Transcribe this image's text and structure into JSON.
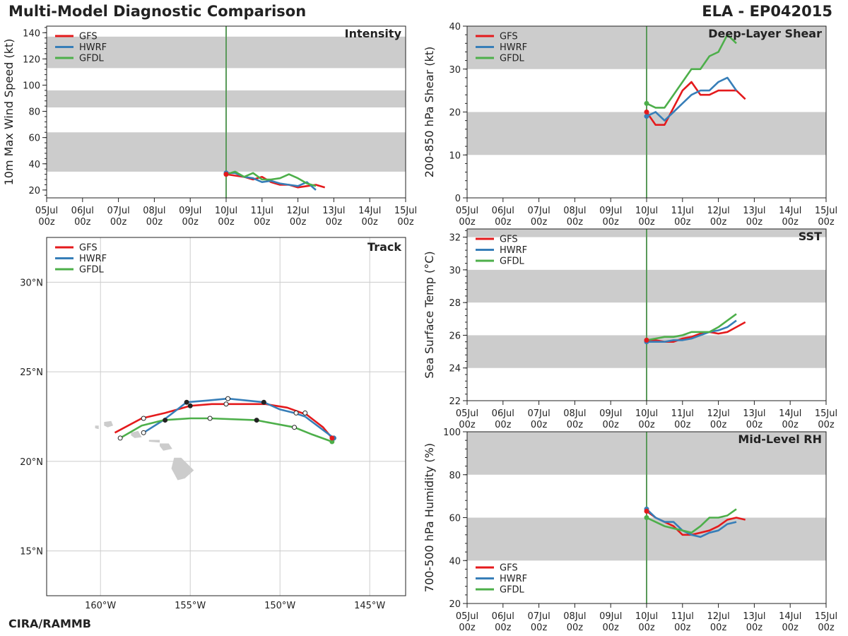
{
  "header": {
    "title": "Multi-Model Diagnostic Comparison",
    "storm": "ELA - EP042015"
  },
  "footer": {
    "credit": "CIRA/RAMMB"
  },
  "colors": {
    "GFS": "#e41a1c",
    "HWRF": "#377eb8",
    "GFDL": "#4daf4a",
    "band": "#cccccc",
    "init_line": "#5a9a5a",
    "land": "#cccccc"
  },
  "chart_data": [
    {
      "id": "intensity",
      "type": "line",
      "title": "Intensity",
      "ylabel": "10m Max Wind Speed (kt)",
      "ylim": [
        14,
        145
      ],
      "yticks": [
        20,
        40,
        60,
        80,
        100,
        120,
        140
      ],
      "xlim": [
        0,
        10
      ],
      "xticks": [
        "05Jul\n00z",
        "06Jul\n00z",
        "07Jul\n00z",
        "08Jul\n00z",
        "09Jul\n00z",
        "10Jul\n00z",
        "11Jul\n00z",
        "12Jul\n00z",
        "13Jul\n00z",
        "14Jul\n00z",
        "15Jul\n00z"
      ],
      "bands": [
        [
          34,
          64
        ],
        [
          83,
          96
        ],
        [
          113,
          137
        ]
      ],
      "init_x": 5,
      "legend": [
        "GFS",
        "HWRF",
        "GFDL"
      ],
      "series": [
        {
          "name": "GFS",
          "x": [
            5,
            5.25,
            5.5,
            5.75,
            6,
            6.25,
            6.5,
            6.75,
            7,
            7.25,
            7.5,
            7.75
          ],
          "y": [
            32,
            31,
            30,
            28,
            30,
            26,
            24,
            24,
            22,
            23,
            24,
            22
          ]
        },
        {
          "name": "HWRF",
          "x": [
            5,
            5.25,
            5.5,
            5.75,
            6,
            6.25,
            6.5,
            6.75,
            7,
            7.25,
            7.5
          ],
          "y": [
            33,
            33,
            30,
            29,
            26,
            27,
            25,
            24,
            23,
            26,
            20
          ]
        },
        {
          "name": "GFDL",
          "x": [
            5,
            5.25,
            5.5,
            5.75,
            6,
            6.25,
            6.5,
            6.75,
            7,
            7.25,
            7.5
          ],
          "y": [
            32,
            34,
            30,
            33,
            28,
            28,
            29,
            32,
            29,
            25,
            23
          ]
        }
      ]
    },
    {
      "id": "shear",
      "type": "line",
      "title": "Deep-Layer Shear",
      "ylabel": "200-850 hPa Shear (kt)",
      "ylim": [
        0,
        40
      ],
      "yticks": [
        0,
        10,
        20,
        30,
        40
      ],
      "xlim": [
        0,
        10
      ],
      "xticks": [
        "05Jul\n00z",
        "06Jul\n00z",
        "07Jul\n00z",
        "08Jul\n00z",
        "09Jul\n00z",
        "10Jul\n00z",
        "11Jul\n00z",
        "12Jul\n00z",
        "13Jul\n00z",
        "14Jul\n00z",
        "15Jul\n00z"
      ],
      "bands": [
        [
          10,
          20
        ],
        [
          30,
          40
        ]
      ],
      "init_x": 5,
      "legend": [
        "GFS",
        "HWRF",
        "GFDL"
      ],
      "series": [
        {
          "name": "GFS",
          "x": [
            5,
            5.25,
            5.5,
            5.75,
            6,
            6.25,
            6.5,
            6.75,
            7,
            7.25,
            7.5,
            7.75
          ],
          "y": [
            20,
            17,
            17,
            21,
            25,
            27,
            24,
            24,
            25,
            25,
            25,
            23
          ]
        },
        {
          "name": "HWRF",
          "x": [
            5,
            5.25,
            5.5,
            5.75,
            6,
            6.25,
            6.5,
            6.75,
            7,
            7.25,
            7.5
          ],
          "y": [
            19,
            20,
            18,
            20,
            22,
            24,
            25,
            25,
            27,
            28,
            25
          ]
        },
        {
          "name": "GFDL",
          "x": [
            5,
            5.25,
            5.5,
            5.75,
            6,
            6.25,
            6.5,
            6.75,
            7,
            7.25,
            7.5
          ],
          "y": [
            22,
            21,
            21,
            24,
            27,
            30,
            30,
            33,
            34,
            38,
            36
          ]
        }
      ]
    },
    {
      "id": "sst",
      "type": "line",
      "title": "SST",
      "ylabel": "Sea Surface Temp (°C)",
      "ylim": [
        22,
        32.5
      ],
      "yticks": [
        22,
        24,
        26,
        28,
        30,
        32
      ],
      "xlim": [
        0,
        10
      ],
      "xticks": [
        "05Jul\n00z",
        "06Jul\n00z",
        "07Jul\n00z",
        "08Jul\n00z",
        "09Jul\n00z",
        "10Jul\n00z",
        "11Jul\n00z",
        "12Jul\n00z",
        "13Jul\n00z",
        "14Jul\n00z",
        "15Jul\n00z"
      ],
      "bands": [
        [
          24,
          26
        ],
        [
          28,
          30
        ],
        [
          32,
          32.5
        ]
      ],
      "init_x": 5,
      "legend": [
        "GFS",
        "HWRF",
        "GFDL"
      ],
      "series": [
        {
          "name": "GFS",
          "x": [
            5,
            5.25,
            5.5,
            5.75,
            6,
            6.25,
            6.5,
            6.75,
            7,
            7.25,
            7.5,
            7.75
          ],
          "y": [
            25.7,
            25.7,
            25.6,
            25.6,
            25.8,
            25.9,
            26.1,
            26.2,
            26.1,
            26.2,
            26.5,
            26.8
          ]
        },
        {
          "name": "HWRF",
          "x": [
            5,
            5.25,
            5.5,
            5.75,
            6,
            6.25,
            6.5,
            6.75,
            7,
            7.25,
            7.5
          ],
          "y": [
            25.6,
            25.6,
            25.6,
            25.7,
            25.7,
            25.8,
            26,
            26.2,
            26.3,
            26.5,
            26.9
          ]
        },
        {
          "name": "GFDL",
          "x": [
            5,
            5.25,
            5.5,
            5.75,
            6,
            6.25,
            6.5,
            6.75,
            7,
            7.25,
            7.5
          ],
          "y": [
            25.7,
            25.8,
            25.9,
            25.9,
            26,
            26.2,
            26.2,
            26.2,
            26.5,
            26.9,
            27.3
          ]
        }
      ]
    },
    {
      "id": "rh",
      "type": "line",
      "title": "Mid-Level RH",
      "ylabel": "700-500 hPa Humidity (%)",
      "ylim": [
        20,
        100
      ],
      "yticks": [
        20,
        40,
        60,
        80,
        100
      ],
      "xlim": [
        0,
        10
      ],
      "xticks": [
        "05Jul\n00z",
        "06Jul\n00z",
        "07Jul\n00z",
        "08Jul\n00z",
        "09Jul\n00z",
        "10Jul\n00z",
        "11Jul\n00z",
        "12Jul\n00z",
        "13Jul\n00z",
        "14Jul\n00z",
        "15Jul\n00z"
      ],
      "bands": [
        [
          40,
          60
        ],
        [
          80,
          100
        ]
      ],
      "init_x": 5,
      "legend": [
        "GFS",
        "HWRF",
        "GFDL"
      ],
      "legend_loc": "lower-left",
      "series": [
        {
          "name": "GFS",
          "x": [
            5,
            5.25,
            5.5,
            5.75,
            6,
            6.25,
            6.5,
            6.75,
            7,
            7.25,
            7.5,
            7.75
          ],
          "y": [
            63,
            60,
            58,
            56,
            52,
            52,
            53,
            54,
            56,
            59,
            60,
            59
          ]
        },
        {
          "name": "HWRF",
          "x": [
            5,
            5.25,
            5.5,
            5.75,
            6,
            6.25,
            6.5,
            6.75,
            7,
            7.25,
            7.5
          ],
          "y": [
            64,
            60,
            58,
            58,
            54,
            52,
            51,
            53,
            54,
            57,
            58
          ]
        },
        {
          "name": "GFDL",
          "x": [
            5,
            5.25,
            5.5,
            5.75,
            6,
            6.25,
            6.5,
            6.75,
            7,
            7.25,
            7.5
          ],
          "y": [
            60,
            58,
            56,
            55,
            54,
            53,
            56,
            60,
            60,
            61,
            64
          ]
        }
      ]
    },
    {
      "id": "track",
      "type": "scatter",
      "title": "Track",
      "xlim": [
        -163,
        -143
      ],
      "ylim": [
        12.5,
        32.5
      ],
      "xticks": [
        -160,
        -155,
        -150,
        -145
      ],
      "xtick_labels": [
        "160°W",
        "155°W",
        "150°W",
        "145°W"
      ],
      "yticks": [
        15,
        20,
        25,
        30
      ],
      "ytick_labels": [
        "15°N",
        "20°N",
        "25°N",
        "30°N"
      ],
      "legend": [
        "GFS",
        "HWRF",
        "GFDL"
      ],
      "series": [
        {
          "name": "GFS",
          "lon": [
            -147.1,
            -147.6,
            -148.5,
            -149.6,
            -150.8,
            -152.2,
            -153.8,
            -155,
            -156.4,
            -157.7,
            -159.2
          ],
          "lat": [
            21.3,
            21.9,
            22.6,
            23,
            23.2,
            23.2,
            23.2,
            23.1,
            22.7,
            22.4,
            21.6
          ]
        },
        {
          "name": "HWRF",
          "lon": [
            -147,
            -147.8,
            -148.6,
            -149.2,
            -150,
            -150.9,
            -152.9,
            -154,
            -155.2,
            -156.5,
            -157.6
          ],
          "lat": [
            21.3,
            21.9,
            22.5,
            22.7,
            22.9,
            23.3,
            23.5,
            23.4,
            23.3,
            22.3,
            21.6
          ]
        },
        {
          "name": "GFDL",
          "lon": [
            -147.1,
            -148.2,
            -149.2,
            -150.8,
            -151.3,
            -153.9,
            -155,
            -156.5,
            -157.7,
            -158.9
          ],
          "lat": [
            21.1,
            21.5,
            21.9,
            22.2,
            22.3,
            22.4,
            22.4,
            22.3,
            22,
            21.3
          ]
        }
      ],
      "markers": [
        {
          "lon": -155.2,
          "lat": 23.3,
          "filled": true
        },
        {
          "lon": -155,
          "lat": 23.1,
          "filled": true
        },
        {
          "lon": -156.4,
          "lat": 22.3,
          "filled": true
        },
        {
          "lon": -151.3,
          "lat": 22.3,
          "filled": true
        },
        {
          "lon": -150.9,
          "lat": 23.3,
          "filled": true
        },
        {
          "lon": -157.6,
          "lat": 22.4,
          "filled": false
        },
        {
          "lon": -157.6,
          "lat": 21.6,
          "filled": false
        },
        {
          "lon": -158.9,
          "lat": 21.3,
          "filled": false
        },
        {
          "lon": -152.9,
          "lat": 23.5,
          "filled": false
        },
        {
          "lon": -153,
          "lat": 23.2,
          "filled": false
        },
        {
          "lon": -153.9,
          "lat": 22.4,
          "filled": false
        },
        {
          "lon": -149.1,
          "lat": 22.7,
          "filled": false
        },
        {
          "lon": -148.6,
          "lat": 22.7,
          "filled": false
        },
        {
          "lon": -149.2,
          "lat": 21.9,
          "filled": false
        },
        {
          "lon": -147,
          "lat": 21.3,
          "filled": false
        }
      ]
    }
  ]
}
